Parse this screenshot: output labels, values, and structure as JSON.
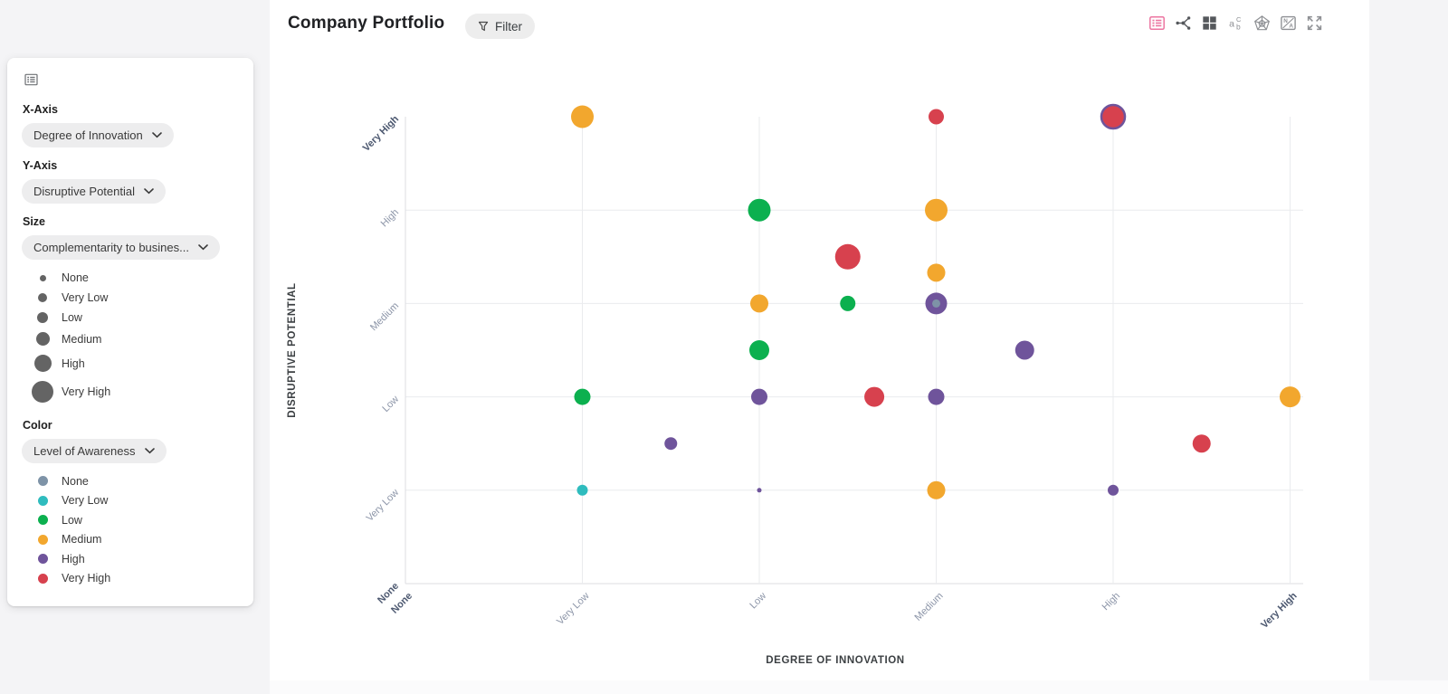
{
  "header": {
    "title": "Company Portfolio",
    "filter_label": "Filter"
  },
  "toolbar": {
    "icons": [
      "matrix-list-view",
      "relation-network-view",
      "grid-view",
      "labels-toggle",
      "radar-view",
      "show-na-toggle",
      "fullscreen"
    ],
    "active_icon": "matrix-list-view",
    "active_color": "#EC74A0",
    "dark_icon_color": "#55585C",
    "light_icon_color": "#8E9094"
  },
  "panel": {
    "panel_icon": "matrix-settings-icon",
    "x_axis_label": "X-Axis",
    "x_axis_value": "Degree of Innovation",
    "y_axis_label": "Y-Axis",
    "y_axis_value": "Disruptive Potential",
    "size_label": "Size",
    "size_value": "Complementarity to busines...",
    "color_label": "Color",
    "color_value": "Level of Awareness",
    "size_dot_color": "#646464",
    "size_legend": [
      {
        "label": "None",
        "d": 7
      },
      {
        "label": "Very Low",
        "d": 10
      },
      {
        "label": "Low",
        "d": 12
      },
      {
        "label": "Medium",
        "d": 15
      },
      {
        "label": "High",
        "d": 19
      },
      {
        "label": "Very High",
        "d": 24
      }
    ],
    "color_legend": [
      {
        "key": "none",
        "label": "None"
      },
      {
        "key": "very_low",
        "label": "Very Low"
      },
      {
        "key": "low",
        "label": "Low"
      },
      {
        "key": "medium",
        "label": "Medium"
      },
      {
        "key": "high",
        "label": "High"
      },
      {
        "key": "very_high",
        "label": "Very High"
      }
    ]
  },
  "chart_data": {
    "type": "scatter",
    "title": "Company Portfolio",
    "xlabel": "DEGREE OF INNOVATION",
    "ylabel": "DISRUPTIVE POTENTIAL",
    "categories": [
      "None",
      "Very Low",
      "Low",
      "Medium",
      "High",
      "Very High"
    ],
    "axis_range": [
      0,
      5
    ],
    "grid": true,
    "legend_position": "left-panel",
    "tick_color": "#8C95A8",
    "tick_emphasis_color": "#4C5870",
    "colors": {
      "none": "#7E93A7",
      "very_low": "#2FBCBE",
      "low": "#0CB04F",
      "medium": "#F2A72E",
      "high": "#6F549B",
      "very_high": "#D7414E"
    },
    "points": [
      {
        "x": 1,
        "y": 5,
        "awareness": "medium",
        "size": "High",
        "r": 12.5
      },
      {
        "x": 3,
        "y": 5,
        "awareness": "very_high",
        "size": "Low",
        "r": 8.5
      },
      {
        "x": 4,
        "y": 5,
        "awareness": "very_high",
        "size": "Very High",
        "r": 13,
        "ring": "high"
      },
      {
        "x": 2,
        "y": 4,
        "awareness": "low",
        "size": "High",
        "r": 12.5
      },
      {
        "x": 3,
        "y": 4,
        "awareness": "medium",
        "size": "High",
        "r": 12.5
      },
      {
        "x": 2.5,
        "y": 3.5,
        "awareness": "very_high",
        "size": "Very High",
        "r": 14
      },
      {
        "x": 3,
        "y": 3.33,
        "awareness": "medium",
        "size": "Medium",
        "r": 10
      },
      {
        "x": 2,
        "y": 3,
        "awareness": "medium",
        "size": "Medium",
        "r": 10
      },
      {
        "x": 2.5,
        "y": 3,
        "awareness": "low",
        "size": "Low",
        "r": 8.5
      },
      {
        "x": 3,
        "y": 3,
        "awareness": "high",
        "size": "High",
        "r": 12
      },
      {
        "x": 3,
        "y": 3,
        "awareness": "none",
        "size": "None",
        "r": 4.5
      },
      {
        "x": 2,
        "y": 2.5,
        "awareness": "low",
        "size": "Medium",
        "r": 11
      },
      {
        "x": 3.5,
        "y": 2.5,
        "awareness": "high",
        "size": "Medium",
        "r": 10.5
      },
      {
        "x": 1,
        "y": 2,
        "awareness": "low",
        "size": "Low",
        "r": 9
      },
      {
        "x": 2,
        "y": 2,
        "awareness": "high",
        "size": "Low",
        "r": 9
      },
      {
        "x": 2.65,
        "y": 2,
        "awareness": "very_high",
        "size": "Medium",
        "r": 11
      },
      {
        "x": 3,
        "y": 2,
        "awareness": "high",
        "size": "Low",
        "r": 9
      },
      {
        "x": 5,
        "y": 2,
        "awareness": "medium",
        "size": "High",
        "r": 11.5
      },
      {
        "x": 1.5,
        "y": 1.5,
        "awareness": "high",
        "size": "Very Low",
        "r": 7
      },
      {
        "x": 4.5,
        "y": 1.5,
        "awareness": "very_high",
        "size": "Medium",
        "r": 10
      },
      {
        "x": 1,
        "y": 1,
        "awareness": "very_low",
        "size": "Very Low",
        "r": 6
      },
      {
        "x": 2,
        "y": 1,
        "awareness": "high",
        "size": "None",
        "r": 2.5
      },
      {
        "x": 3,
        "y": 1,
        "awareness": "medium",
        "size": "Medium",
        "r": 10
      },
      {
        "x": 4,
        "y": 1,
        "awareness": "high",
        "size": "Very Low",
        "r": 6
      }
    ]
  }
}
